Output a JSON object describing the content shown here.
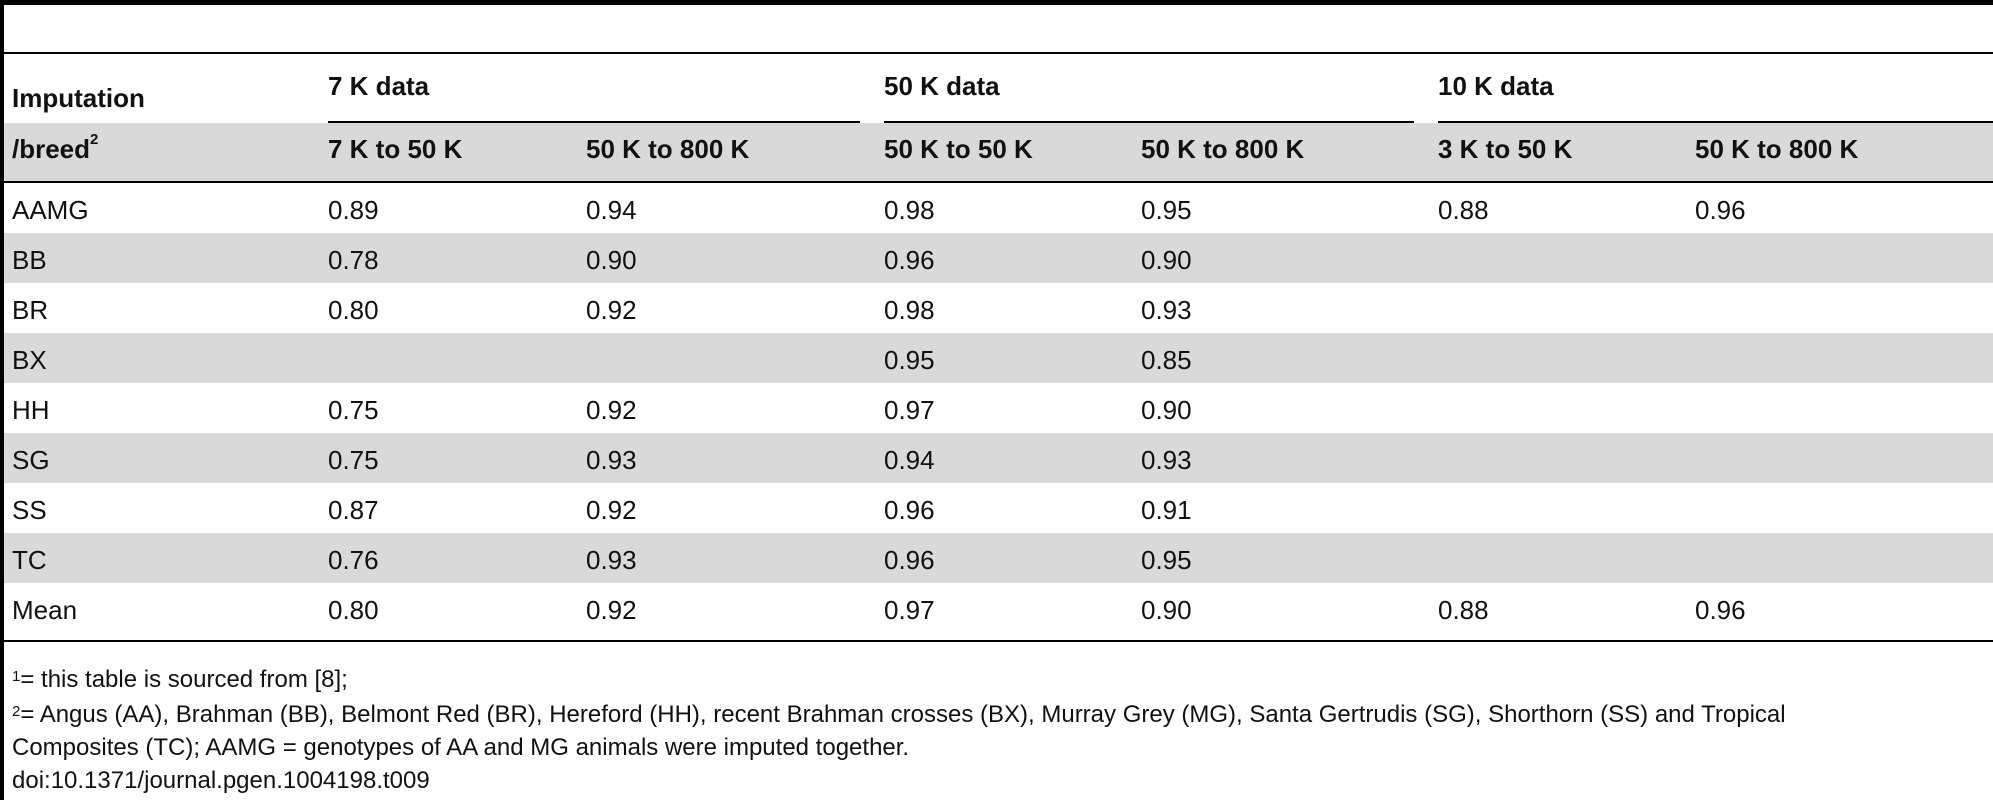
{
  "table": {
    "group_headers": [
      "7 K data",
      "50 K data",
      "10 K data"
    ],
    "stub_header_line1": "Imputation",
    "stub_header_line2": "/breed",
    "stub_header_sup": "2",
    "sub_headers": [
      "7 K to 50 K",
      "50 K to 800 K",
      "50 K to 50 K",
      "50 K to 800 K",
      "3 K to 50 K",
      "50 K to 800 K"
    ],
    "rows": [
      {
        "breed": "AAMG",
        "values": [
          "0.89",
          "0.94",
          "0.98",
          "0.95",
          "0.88",
          "0.96"
        ]
      },
      {
        "breed": "BB",
        "values": [
          "0.78",
          "0.90",
          "0.96",
          "0.90",
          "",
          ""
        ]
      },
      {
        "breed": "BR",
        "values": [
          "0.80",
          "0.92",
          "0.98",
          "0.93",
          "",
          ""
        ]
      },
      {
        "breed": "BX",
        "values": [
          "",
          "",
          "0.95",
          "0.85",
          "",
          ""
        ]
      },
      {
        "breed": "HH",
        "values": [
          "0.75",
          "0.92",
          "0.97",
          "0.90",
          "",
          ""
        ]
      },
      {
        "breed": "SG",
        "values": [
          "0.75",
          "0.93",
          "0.94",
          "0.93",
          "",
          ""
        ]
      },
      {
        "breed": "SS",
        "values": [
          "0.87",
          "0.92",
          "0.96",
          "0.91",
          "",
          ""
        ]
      },
      {
        "breed": "TC",
        "values": [
          "0.76",
          "0.93",
          "0.96",
          "0.95",
          "",
          ""
        ]
      },
      {
        "breed": "Mean",
        "values": [
          "0.80",
          "0.92",
          "0.97",
          "0.90",
          "0.88",
          "0.96"
        ]
      }
    ]
  },
  "footnotes": {
    "note1_sup": "1",
    "note1_text": "= this table is sourced from [8];",
    "note2_sup": "2",
    "note2_line1": "= Angus (AA), Brahman (BB), Belmont Red (BR), Hereford (HH), recent Brahman crosses (BX), Murray Grey (MG), Santa Gertrudis (SG), Shorthorn (SS) and Tropical",
    "note2_line2": "Composites (TC); AAMG = genotypes of AA and MG animals were imputed together.",
    "doi": "doi:10.1371/journal.pgen.1004198.t009"
  },
  "colors": {
    "shade": "#d9d9d9",
    "rule": "#000000"
  }
}
